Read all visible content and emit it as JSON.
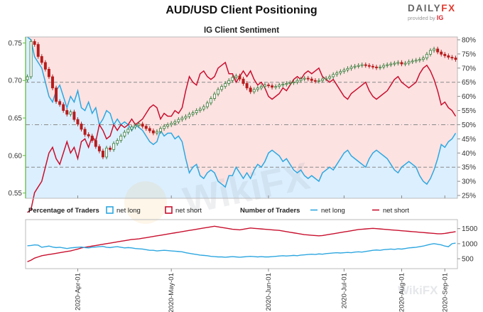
{
  "page": {
    "title": "AUD/USD Client Positioning"
  },
  "logo": {
    "main": "DAILY",
    "fx": "FX",
    "sub": "provided by",
    "ig": "IG"
  },
  "watermark": "WikiFX",
  "chart_data": [
    {
      "type": "candlestick",
      "title": "IG Client Sentiment",
      "y_left_ticks": [
        "0.75",
        "0.70",
        "0.65",
        "0.60",
        "0.55"
      ],
      "ylim_left": [
        0.543,
        0.758
      ],
      "y_right_ticks": [
        "80%",
        "75%",
        "70%",
        "65%",
        "60%",
        "55%",
        "50%",
        "45%",
        "40%",
        "35%",
        "30%",
        "25%"
      ],
      "ylim_right": [
        24,
        81
      ],
      "reference_lines_pct": [
        65,
        50,
        35
      ],
      "net_long_pct": [
        81,
        80,
        74,
        72,
        70,
        65,
        60,
        58,
        62,
        64,
        60,
        56,
        60,
        58,
        62,
        56,
        55,
        58,
        54,
        56,
        50,
        52,
        55,
        54,
        50,
        52,
        50,
        51,
        50,
        48,
        50,
        49,
        48,
        46,
        44,
        43,
        44,
        48,
        46,
        47,
        47,
        45,
        46,
        44,
        38,
        33,
        35,
        36,
        32,
        31,
        33,
        34,
        33,
        30,
        29,
        28,
        32,
        32,
        35,
        33,
        31,
        33,
        31,
        34,
        36,
        35,
        37,
        40,
        41,
        40,
        39,
        37,
        38,
        36,
        34,
        33,
        34,
        32,
        31,
        32,
        31,
        30,
        33,
        34,
        35,
        34,
        36,
        38,
        40,
        41,
        39,
        38,
        37,
        36,
        35,
        38,
        40,
        41,
        40,
        39,
        38,
        36,
        34,
        33,
        35,
        36,
        37,
        36,
        35,
        32,
        30,
        29,
        31,
        34,
        38,
        43,
        42,
        44,
        45,
        47
      ],
      "net_short_pct": [
        19,
        20,
        26,
        28,
        30,
        35,
        40,
        42,
        38,
        36,
        40,
        44,
        40,
        42,
        38,
        44,
        45,
        42,
        46,
        44,
        50,
        48,
        45,
        46,
        50,
        48,
        50,
        49,
        50,
        52,
        50,
        51,
        52,
        54,
        56,
        57,
        56,
        52,
        54,
        53,
        53,
        55,
        54,
        56,
        62,
        67,
        65,
        64,
        68,
        69,
        67,
        66,
        67,
        70,
        71,
        72,
        68,
        68,
        65,
        67,
        69,
        67,
        69,
        66,
        64,
        65,
        63,
        60,
        59,
        60,
        61,
        63,
        62,
        64,
        66,
        67,
        66,
        68,
        69,
        68,
        69,
        70,
        67,
        66,
        65,
        66,
        64,
        62,
        60,
        59,
        61,
        62,
        63,
        64,
        65,
        62,
        60,
        59,
        60,
        61,
        62,
        64,
        66,
        67,
        65,
        64,
        63,
        64,
        65,
        68,
        70,
        71,
        69,
        66,
        62,
        57,
        58,
        56,
        55,
        53
      ],
      "price_close": [
        0.705,
        0.752,
        0.748,
        0.732,
        0.724,
        0.715,
        0.705,
        0.69,
        0.672,
        0.668,
        0.66,
        0.655,
        0.658,
        0.648,
        0.642,
        0.635,
        0.628,
        0.626,
        0.62,
        0.612,
        0.606,
        0.598,
        0.61,
        0.608,
        0.616,
        0.62,
        0.626,
        0.631,
        0.635,
        0.638,
        0.64,
        0.642,
        0.639,
        0.636,
        0.633,
        0.63,
        0.632,
        0.636,
        0.639,
        0.641,
        0.643,
        0.645,
        0.648,
        0.65,
        0.652,
        0.655,
        0.657,
        0.66,
        0.662,
        0.665,
        0.67,
        0.676,
        0.682,
        0.688,
        0.692,
        0.696,
        0.7,
        0.704,
        0.706,
        0.702,
        0.696,
        0.69,
        0.685,
        0.688,
        0.69,
        0.692,
        0.694,
        0.693,
        0.691,
        0.692,
        0.694,
        0.695,
        0.696,
        0.697,
        0.698,
        0.7,
        0.702,
        0.703,
        0.702,
        0.7,
        0.699,
        0.7,
        0.702,
        0.703,
        0.705,
        0.708,
        0.71,
        0.712,
        0.714,
        0.716,
        0.718,
        0.719,
        0.72,
        0.721,
        0.72,
        0.719,
        0.718,
        0.717,
        0.718,
        0.72,
        0.721,
        0.722,
        0.723,
        0.724,
        0.722,
        0.723,
        0.725,
        0.726,
        0.727,
        0.728,
        0.73,
        0.735,
        0.74,
        0.742,
        0.738,
        0.735,
        0.733,
        0.731,
        0.73,
        0.728
      ],
      "x_tick_labels": [
        "2020-Apr-01",
        "2020-May-01",
        "2020-Jun-01",
        "2020-Jul-01",
        "2020-Aug-01",
        "2020-Sep-01"
      ],
      "x_tick_positions": [
        14,
        40,
        67,
        88,
        104,
        116
      ]
    },
    {
      "type": "line",
      "legend": {
        "pct_title": "Percentage of Traders",
        "pct_long": "net long",
        "pct_short": "net short",
        "num_title": "Number of Traders",
        "num_long": "net long",
        "num_short": "net short"
      },
      "y_right_ticks": [
        "1500",
        "1000",
        "500"
      ],
      "ylim": [
        170,
        1800
      ],
      "net_long_count": [
        930,
        940,
        960,
        950,
        880,
        900,
        920,
        890,
        870,
        880,
        860,
        840,
        860,
        870,
        880,
        890,
        870,
        860,
        880,
        890,
        900,
        910,
        880,
        870,
        890,
        900,
        880,
        860,
        870,
        860,
        840,
        830,
        820,
        800,
        780,
        780,
        760,
        770,
        780,
        770,
        760,
        750,
        740,
        730,
        700,
        680,
        660,
        640,
        620,
        610,
        600,
        580,
        570,
        560,
        560,
        550,
        560,
        570,
        560,
        550,
        560,
        570,
        580,
        570,
        560,
        570,
        560,
        560,
        570,
        580,
        590,
        600,
        590,
        600,
        610,
        600,
        620,
        630,
        640,
        650,
        640,
        660,
        650,
        670,
        680,
        690,
        700,
        690,
        700,
        710,
        700,
        720,
        730,
        720,
        740,
        760,
        780,
        790,
        780,
        800,
        810,
        820,
        810,
        830,
        820,
        840,
        860,
        870,
        880,
        900,
        920,
        950,
        980,
        1000,
        980,
        960,
        920,
        900,
        1000,
        1020
      ],
      "net_short_count": [
        400,
        450,
        520,
        560,
        600,
        620,
        640,
        660,
        680,
        700,
        720,
        740,
        760,
        790,
        820,
        860,
        880,
        900,
        920,
        940,
        960,
        980,
        1000,
        1020,
        1040,
        1060,
        1080,
        1100,
        1120,
        1140,
        1150,
        1160,
        1180,
        1200,
        1220,
        1240,
        1260,
        1280,
        1300,
        1320,
        1340,
        1360,
        1380,
        1400,
        1420,
        1440,
        1460,
        1480,
        1500,
        1520,
        1540,
        1560,
        1580,
        1560,
        1540,
        1520,
        1500,
        1480,
        1470,
        1460,
        1480,
        1500,
        1520,
        1510,
        1500,
        1490,
        1480,
        1470,
        1460,
        1450,
        1440,
        1420,
        1400,
        1380,
        1360,
        1340,
        1320,
        1300,
        1290,
        1280,
        1270,
        1260,
        1270,
        1290,
        1310,
        1330,
        1350,
        1370,
        1390,
        1410,
        1430,
        1450,
        1470,
        1480,
        1490,
        1500,
        1510,
        1500,
        1490,
        1480,
        1470,
        1460,
        1450,
        1440,
        1430,
        1420,
        1410,
        1400,
        1390,
        1380,
        1370,
        1360,
        1350,
        1340,
        1330,
        1330,
        1340,
        1360,
        1380,
        1400
      ]
    }
  ],
  "colors": {
    "net_long": "#2ea7e0",
    "net_short": "#c8102e",
    "candle_up": "#3a7a3a",
    "candle_down": "#b71c1c",
    "bg_long": "#dcefff",
    "bg_short": "#fde2e2",
    "axis_green": "#65b846"
  }
}
